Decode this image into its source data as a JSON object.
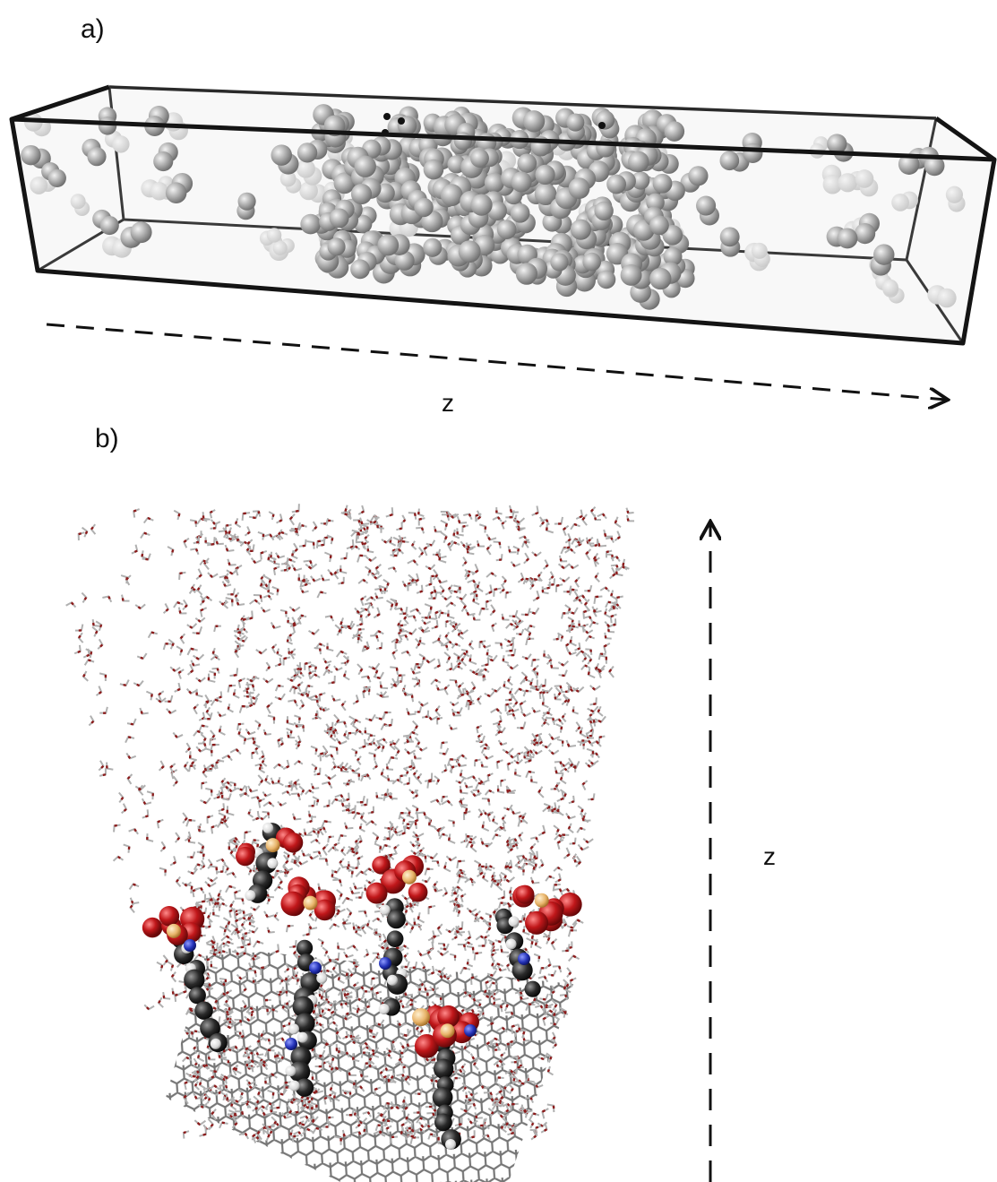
{
  "panels": [
    {
      "id": "a",
      "label": "a)",
      "axis_label": "z",
      "scene": "gas-cluster-in-simulation-box"
    },
    {
      "id": "b",
      "label": "b)",
      "axis_label": "z",
      "scene": "water-and-molecules-on-graphene-sheet"
    }
  ],
  "colors": {
    "box_edge": "#1a1a1a",
    "gas_sphere": "#9a9a9a",
    "water_oxygen": "#8b1a1a",
    "water_bond": "#b0b0b0",
    "graphene": "#707070",
    "molecule_oxygen": "#c0171a",
    "molecule_carbon": "#2a2a2a",
    "molecule_nitrogen": "#2432b8",
    "molecule_sulfur": "#e8b46a",
    "molecule_hydrogen": "#e6e6e6"
  },
  "icons": [
    "dashed-arrow-right-icon",
    "dashed-arrow-up-icon"
  ]
}
